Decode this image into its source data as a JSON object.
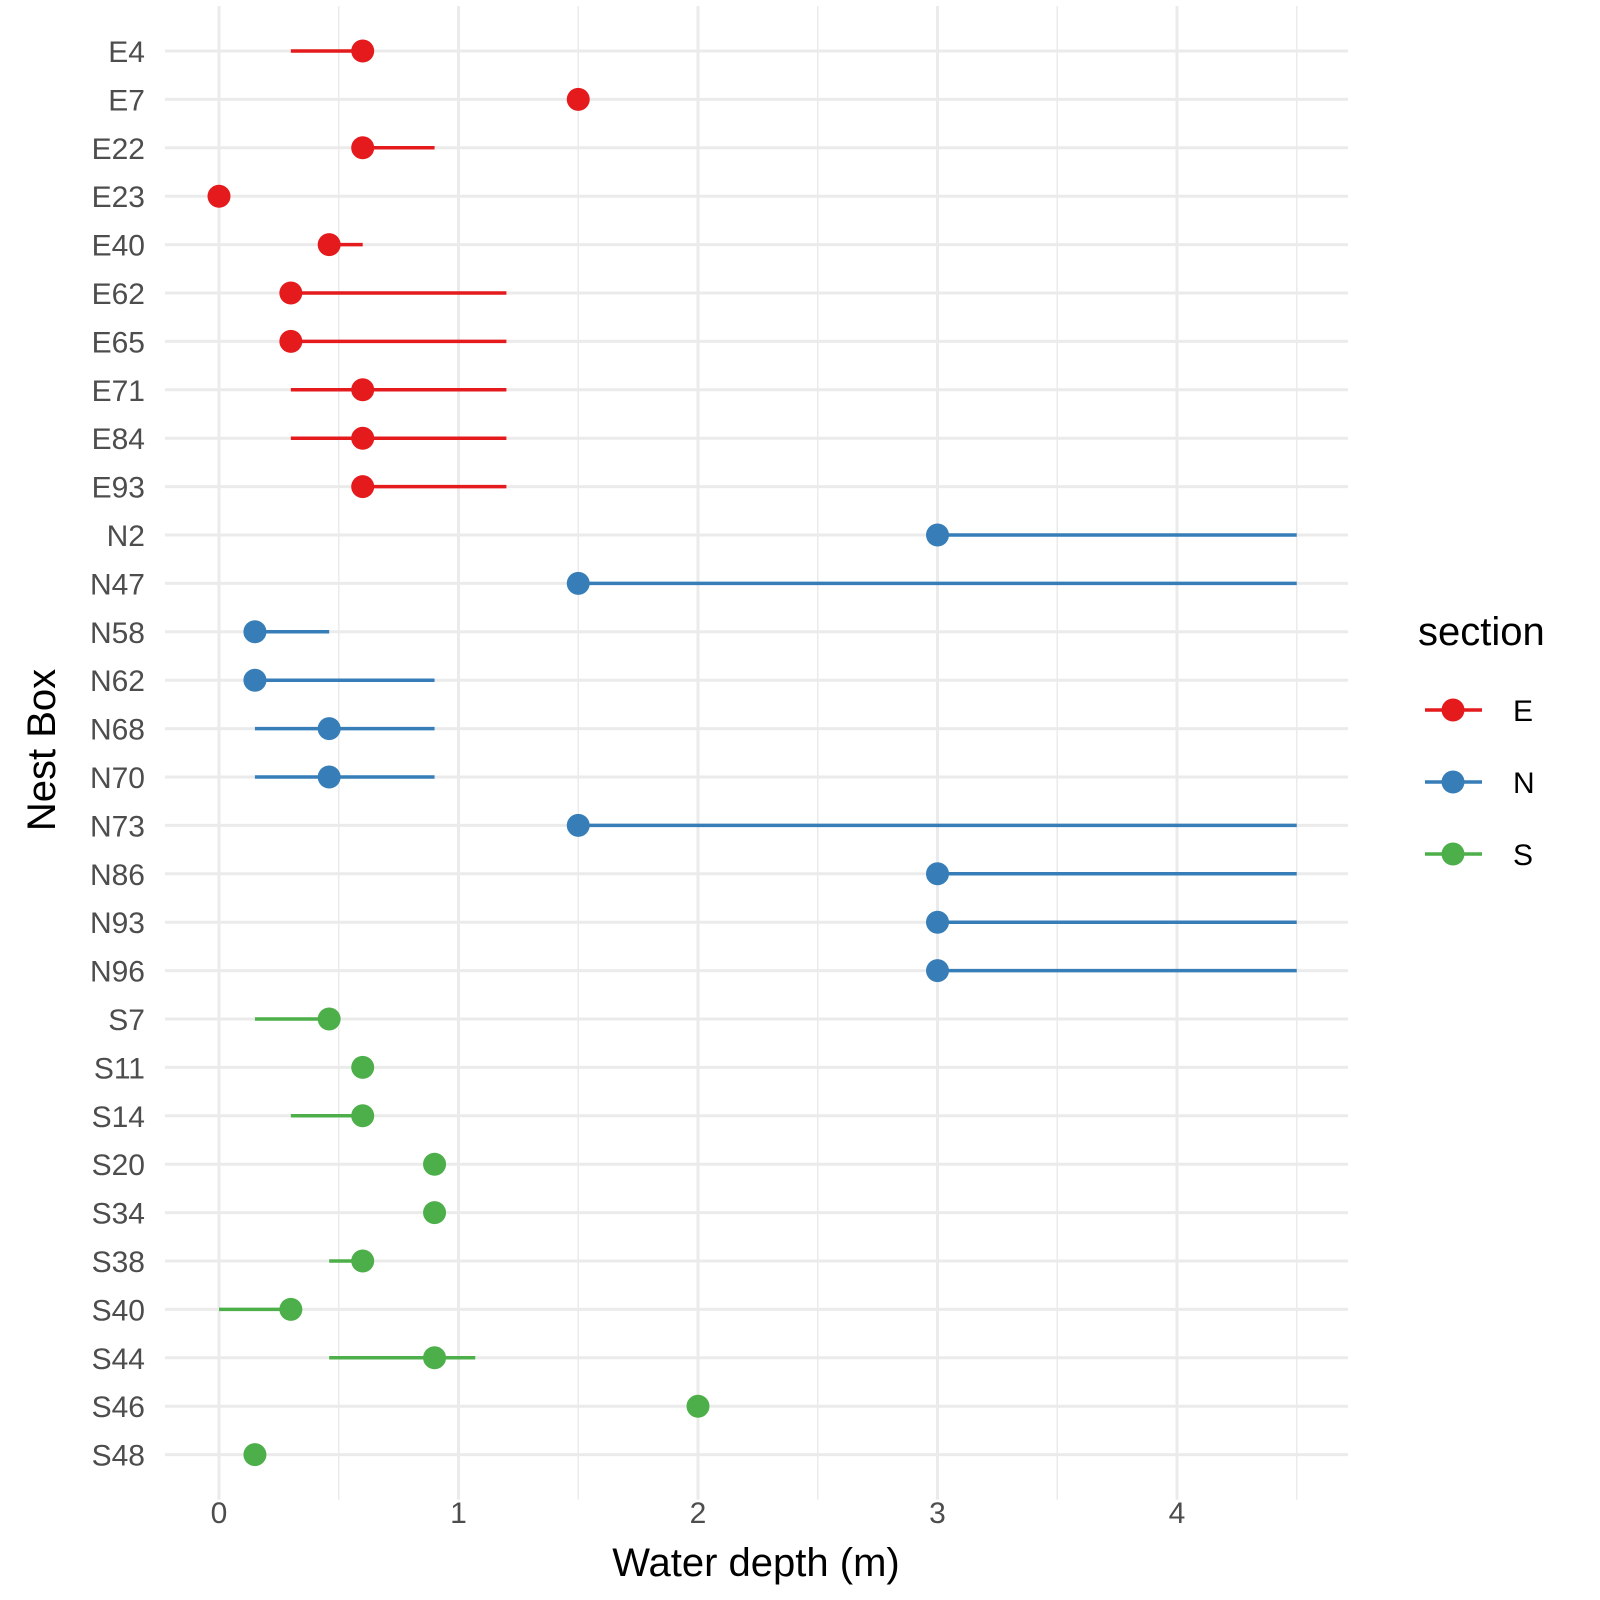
{
  "chart_data": {
    "type": "dot-range",
    "title": "",
    "xlabel": "Water depth (m)",
    "ylabel": "Nest Box",
    "xlim": [
      -0.22,
      4.72
    ],
    "x_ticks": [
      0,
      1,
      2,
      3,
      4
    ],
    "x_minor_ticks": [
      0.5,
      1.5,
      2.5,
      3.5,
      4.5
    ],
    "grid": true,
    "legend": {
      "title": "section",
      "placement": "right",
      "entries": [
        {
          "label": "E",
          "color": "#e41a1c"
        },
        {
          "label": "N",
          "color": "#377eb8"
        },
        {
          "label": "S",
          "color": "#4daf4a"
        }
      ]
    },
    "points": [
      {
        "box": "E4",
        "section": "E",
        "value": 0.6,
        "min": 0.3,
        "max": 0.6
      },
      {
        "box": "E7",
        "section": "E",
        "value": 1.5,
        "min": 1.5,
        "max": 1.5
      },
      {
        "box": "E22",
        "section": "E",
        "value": 0.6,
        "min": 0.6,
        "max": 0.9
      },
      {
        "box": "E23",
        "section": "E",
        "value": 0,
        "min": 0,
        "max": 0
      },
      {
        "box": "E40",
        "section": "E",
        "value": 0.46,
        "min": 0.46,
        "max": 0.6
      },
      {
        "box": "E62",
        "section": "E",
        "value": 0.3,
        "min": 0.3,
        "max": 1.2
      },
      {
        "box": "E65",
        "section": "E",
        "value": 0.3,
        "min": 0.3,
        "max": 1.2
      },
      {
        "box": "E71",
        "section": "E",
        "value": 0.6,
        "min": 0.3,
        "max": 1.2
      },
      {
        "box": "E84",
        "section": "E",
        "value": 0.6,
        "min": 0.3,
        "max": 1.2
      },
      {
        "box": "E93",
        "section": "E",
        "value": 0.6,
        "min": 0.6,
        "max": 1.2
      },
      {
        "box": "N2",
        "section": "N",
        "value": 3.0,
        "min": 3.0,
        "max": 4.5
      },
      {
        "box": "N47",
        "section": "N",
        "value": 1.5,
        "min": 1.5,
        "max": 4.5
      },
      {
        "box": "N58",
        "section": "N",
        "value": 0.15,
        "min": 0.15,
        "max": 0.46
      },
      {
        "box": "N62",
        "section": "N",
        "value": 0.15,
        "min": 0.15,
        "max": 0.9
      },
      {
        "box": "N68",
        "section": "N",
        "value": 0.46,
        "min": 0.15,
        "max": 0.9
      },
      {
        "box": "N70",
        "section": "N",
        "value": 0.46,
        "min": 0.15,
        "max": 0.9
      },
      {
        "box": "N73",
        "section": "N",
        "value": 1.5,
        "min": 1.5,
        "max": 4.5
      },
      {
        "box": "N86",
        "section": "N",
        "value": 3.0,
        "min": 3.0,
        "max": 4.5
      },
      {
        "box": "N93",
        "section": "N",
        "value": 3.0,
        "min": 3.0,
        "max": 4.5
      },
      {
        "box": "N96",
        "section": "N",
        "value": 3.0,
        "min": 3.0,
        "max": 4.5
      },
      {
        "box": "S7",
        "section": "S",
        "value": 0.46,
        "min": 0.15,
        "max": 0.46
      },
      {
        "box": "S11",
        "section": "S",
        "value": 0.6,
        "min": 0.6,
        "max": 0.6
      },
      {
        "box": "S14",
        "section": "S",
        "value": 0.6,
        "min": 0.3,
        "max": 0.6
      },
      {
        "box": "S20",
        "section": "S",
        "value": 0.9,
        "min": 0.9,
        "max": 0.9
      },
      {
        "box": "S34",
        "section": "S",
        "value": 0.9,
        "min": 0.9,
        "max": 0.9
      },
      {
        "box": "S38",
        "section": "S",
        "value": 0.6,
        "min": 0.46,
        "max": 0.6
      },
      {
        "box": "S40",
        "section": "S",
        "value": 0.3,
        "min": 0,
        "max": 0.3
      },
      {
        "box": "S44",
        "section": "S",
        "value": 0.9,
        "min": 0.46,
        "max": 1.07
      },
      {
        "box": "S46",
        "section": "S",
        "value": 2.0,
        "min": 2.0,
        "max": 2.0
      },
      {
        "box": "S48",
        "section": "S",
        "value": 0.15,
        "min": 0.15,
        "max": 0.15
      }
    ]
  }
}
